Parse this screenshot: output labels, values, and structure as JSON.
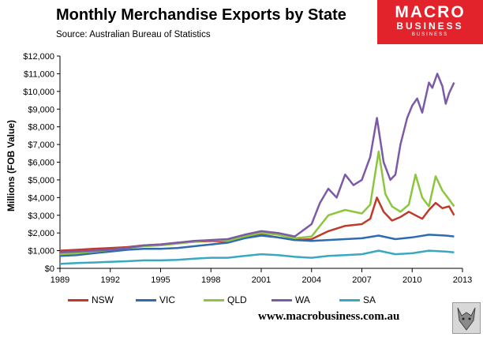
{
  "header": {
    "title": "Monthly Merchandise Exports by State",
    "source": "Source:  Australian Bureau of Statistics"
  },
  "logo": {
    "line1": "MACRO",
    "line2": "BUSINESS",
    "line3": "BUSINESS"
  },
  "footer": {
    "url": "www.macrobusiness.com.au"
  },
  "colors": {
    "NSW": "#c0392b",
    "VIC": "#2e6bb0",
    "QLD": "#8cc63f",
    "WA": "#7b5aa6",
    "SA": "#3aa8c1"
  },
  "chart_data": {
    "type": "line",
    "ylabel": "Millions (FOB Value)",
    "xlabel": "",
    "xlim": [
      1989,
      2013
    ],
    "ylim": [
      0,
      12000
    ],
    "x_ticks": [
      1989,
      1992,
      1995,
      1998,
      2001,
      2004,
      2007,
      2010,
      2013
    ],
    "x_tick_labels": [
      "1989",
      "1992",
      "1995",
      "1998",
      "2001",
      "2004",
      "2007",
      "2010",
      "2013"
    ],
    "y_ticks": [
      0,
      1000,
      2000,
      3000,
      4000,
      5000,
      6000,
      7000,
      8000,
      9000,
      10000,
      11000,
      12000
    ],
    "y_tick_labels": [
      "$0",
      "$1,000",
      "$2,000",
      "$3,000",
      "$4,000",
      "$5,000",
      "$6,000",
      "$7,000",
      "$8,000",
      "$9,000",
      "$10,000",
      "$11,000",
      "$12,000"
    ],
    "grid": false,
    "legend": "bottom",
    "series": [
      {
        "name": "NSW",
        "x": [
          1989.0,
          1990.0,
          1991.0,
          1992.0,
          1993.0,
          1994.0,
          1995.0,
          1996.0,
          1997.0,
          1998.0,
          1999.0,
          2000.0,
          2001.0,
          2002.0,
          2003.0,
          2004.0,
          2005.0,
          2006.0,
          2007.0,
          2007.5,
          2007.9,
          2008.3,
          2008.8,
          2009.3,
          2009.8,
          2010.2,
          2010.6,
          2011.0,
          2011.4,
          2011.8,
          2012.2,
          2012.5
        ],
        "y": [
          1000,
          1050,
          1100,
          1150,
          1200,
          1300,
          1350,
          1450,
          1500,
          1550,
          1500,
          1800,
          1900,
          1750,
          1600,
          1650,
          2100,
          2400,
          2500,
          2800,
          4000,
          3200,
          2700,
          2900,
          3200,
          3000,
          2800,
          3300,
          3700,
          3400,
          3500,
          3000
        ]
      },
      {
        "name": "VIC",
        "x": [
          1989.0,
          1990.0,
          1991.0,
          1992.0,
          1993.0,
          1994.0,
          1995.0,
          1996.0,
          1997.0,
          1998.0,
          1999.0,
          2000.0,
          2001.0,
          2002.0,
          2003.0,
          2004.0,
          2005.0,
          2006.0,
          2007.0,
          2008.0,
          2009.0,
          2010.0,
          2011.0,
          2012.0,
          2012.5
        ],
        "y": [
          700,
          750,
          850,
          950,
          1050,
          1100,
          1100,
          1150,
          1250,
          1350,
          1450,
          1700,
          1850,
          1750,
          1600,
          1550,
          1600,
          1650,
          1700,
          1850,
          1650,
          1750,
          1900,
          1850,
          1800
        ]
      },
      {
        "name": "QLD",
        "x": [
          1989.0,
          1990.0,
          1991.0,
          1992.0,
          1993.0,
          1994.0,
          1995.0,
          1996.0,
          1997.0,
          1998.0,
          1999.0,
          2000.0,
          2001.0,
          2002.0,
          2003.0,
          2004.0,
          2005.0,
          2006.0,
          2007.0,
          2007.5,
          2008.0,
          2008.4,
          2008.8,
          2009.3,
          2009.8,
          2010.2,
          2010.6,
          2011.0,
          2011.4,
          2011.8,
          2012.2,
          2012.5
        ],
        "y": [
          800,
          850,
          950,
          1050,
          1150,
          1250,
          1300,
          1400,
          1500,
          1600,
          1550,
          1800,
          2000,
          1900,
          1700,
          1800,
          3000,
          3300,
          3100,
          3600,
          6600,
          4200,
          3500,
          3200,
          3600,
          5300,
          4000,
          3500,
          5200,
          4400,
          3900,
          3500
        ]
      },
      {
        "name": "WA",
        "x": [
          1989.0,
          1990.0,
          1991.0,
          1992.0,
          1993.0,
          1994.0,
          1995.0,
          1996.0,
          1997.0,
          1998.0,
          1999.0,
          2000.0,
          2001.0,
          2002.0,
          2003.0,
          2004.0,
          2004.5,
          2005.0,
          2005.5,
          2006.0,
          2006.5,
          2007.0,
          2007.5,
          2007.9,
          2008.3,
          2008.7,
          2009.0,
          2009.3,
          2009.7,
          2010.0,
          2010.3,
          2010.6,
          2011.0,
          2011.2,
          2011.5,
          2011.8,
          2012.0,
          2012.2,
          2012.5
        ],
        "y": [
          900,
          950,
          1000,
          1050,
          1150,
          1300,
          1350,
          1450,
          1550,
          1600,
          1650,
          1900,
          2100,
          2000,
          1800,
          2500,
          3700,
          4500,
          4000,
          5300,
          4700,
          5000,
          6300,
          8500,
          6000,
          5000,
          5300,
          7000,
          8500,
          9200,
          9600,
          8800,
          10500,
          10200,
          11000,
          10300,
          9300,
          9900,
          10500
        ]
      },
      {
        "name": "SA",
        "x": [
          1989.0,
          1990.0,
          1991.0,
          1992.0,
          1993.0,
          1994.0,
          1995.0,
          1996.0,
          1997.0,
          1998.0,
          1999.0,
          2000.0,
          2001.0,
          2002.0,
          2003.0,
          2004.0,
          2005.0,
          2006.0,
          2007.0,
          2008.0,
          2009.0,
          2010.0,
          2011.0,
          2012.0,
          2012.5
        ],
        "y": [
          250,
          300,
          330,
          370,
          400,
          450,
          450,
          480,
          550,
          600,
          600,
          700,
          800,
          750,
          650,
          600,
          700,
          750,
          800,
          1000,
          800,
          850,
          1000,
          950,
          900
        ]
      }
    ]
  }
}
